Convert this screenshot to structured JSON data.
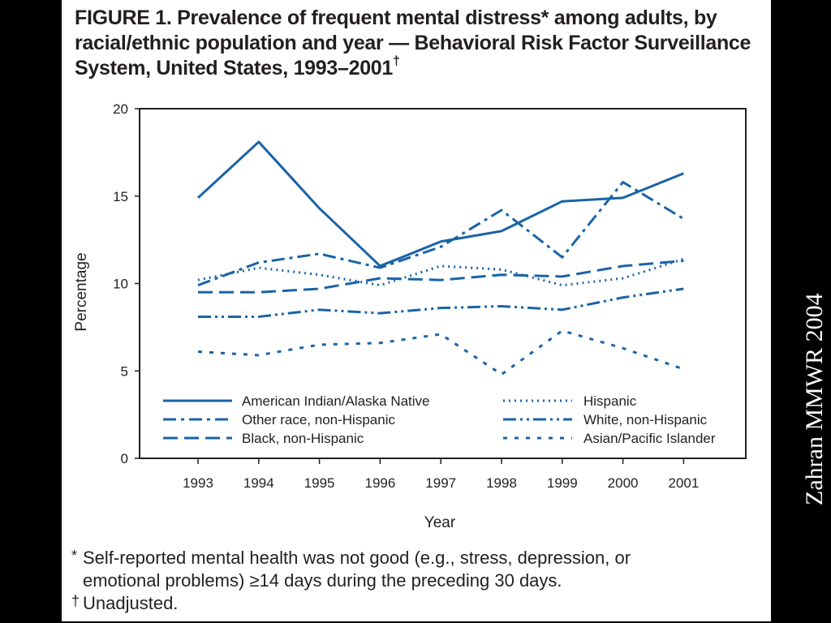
{
  "figure": {
    "title": "FIGURE 1. Prevalence of frequent mental distress* among adults, by racial/ethnic population and year — Behavioral Risk Factor Surveillance System, United States, 1993–2001",
    "title_mark": "†"
  },
  "chart_data": {
    "type": "line",
    "title": "",
    "xlabel": "Year",
    "ylabel": "Percentage",
    "categories": [
      "1993",
      "1994",
      "1995",
      "1996",
      "1997",
      "1998",
      "1999",
      "2000",
      "2001"
    ],
    "ylim": [
      0,
      20
    ],
    "yticks": [
      "0",
      "5",
      "10",
      "15",
      "20"
    ],
    "grid": false,
    "legend_position": "bottom-inside",
    "color": "#1a63a7",
    "series": [
      {
        "name": "American Indian/Alaska Native",
        "dash": "solid",
        "values": [
          14.9,
          18.1,
          14.3,
          11.0,
          12.4,
          13.0,
          14.7,
          14.9,
          16.3
        ]
      },
      {
        "name": "Hispanic",
        "dash": "dotted",
        "values": [
          10.2,
          10.9,
          10.5,
          9.9,
          11.0,
          10.8,
          9.9,
          10.3,
          11.4
        ]
      },
      {
        "name": "Other race, non-Hispanic",
        "dash": "dash-dot",
        "values": [
          9.9,
          11.2,
          11.7,
          10.9,
          12.1,
          14.2,
          11.5,
          15.8,
          13.7
        ]
      },
      {
        "name": "White, non-Hispanic",
        "dash": "dash-dot-dot",
        "values": [
          8.1,
          8.1,
          8.5,
          8.3,
          8.6,
          8.7,
          8.5,
          9.2,
          9.7
        ]
      },
      {
        "name": "Black, non-Hispanic",
        "dash": "long-dash",
        "values": [
          9.5,
          9.5,
          9.7,
          10.3,
          10.2,
          10.5,
          10.4,
          11.0,
          11.3
        ]
      },
      {
        "name": "Asian/Pacific Islander",
        "dash": "short-dash",
        "values": [
          6.1,
          5.9,
          6.5,
          6.6,
          7.1,
          4.8,
          7.3,
          6.3,
          5.1
        ]
      }
    ]
  },
  "footnotes": [
    {
      "mark": "*",
      "lines": [
        "Self-reported mental health was not good (e.g., stress, depression, or",
        "emotional problems) ≥14 days during the preceding 30 days."
      ]
    },
    {
      "mark": "†",
      "lines": [
        "Unadjusted."
      ]
    }
  ],
  "credit": "Zahran MMWR 2004"
}
